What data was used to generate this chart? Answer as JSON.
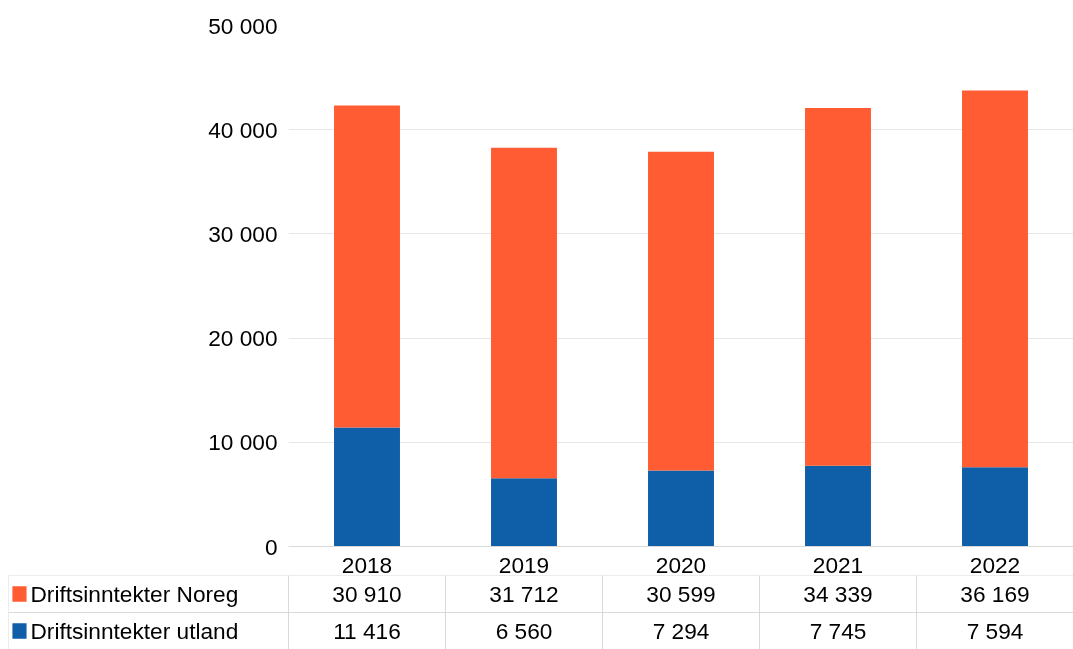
{
  "chart_data": {
    "type": "bar",
    "stacked": true,
    "categories": [
      "2018",
      "2019",
      "2020",
      "2021",
      "2022"
    ],
    "series": [
      {
        "name": "Driftsinntekter utland",
        "color": "#0f5ea8",
        "values": [
          11416,
          6560,
          7294,
          7745,
          7594
        ],
        "value_labels": [
          "11 416",
          "6 560",
          "7 294",
          "7 745",
          "7 594"
        ]
      },
      {
        "name": "Driftsinntekter Noreg",
        "color": "#ff5c33",
        "values": [
          30910,
          31712,
          30599,
          34339,
          36169
        ],
        "value_labels": [
          "30 910",
          "31 712",
          "30 599",
          "34 339",
          "36 169"
        ]
      }
    ],
    "ylim": [
      0,
      50000
    ],
    "yticks": [
      0,
      {
        "value": 10000,
        "label": "10 000"
      },
      {
        "value": 20000,
        "label": "20 000"
      },
      {
        "value": 30000,
        "label": "30 000"
      },
      {
        "value": 40000,
        "label": "40 000"
      },
      {
        "value": 50000,
        "label": "50 000"
      }
    ],
    "grid": "y",
    "legend": "bottom"
  }
}
